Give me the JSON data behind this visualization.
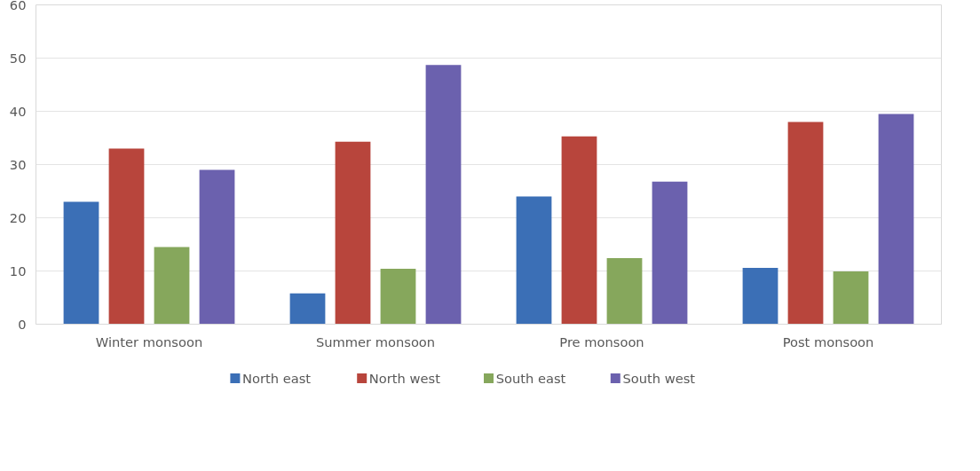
{
  "chart_data": {
    "type": "bar",
    "categories": [
      "Winter monsoon",
      "Summer monsoon",
      "Pre monsoon",
      "Post monsoon"
    ],
    "series": [
      {
        "name": "North east",
        "color": "#3b6fb6",
        "values": [
          23,
          5.8,
          24,
          10.6
        ]
      },
      {
        "name": "North west",
        "color": "#b8453c",
        "values": [
          33,
          34.3,
          35.3,
          38
        ]
      },
      {
        "name": "South east",
        "color": "#86a75c",
        "values": [
          14.5,
          10.4,
          12.4,
          9.9
        ]
      },
      {
        "name": "South west",
        "color": "#6b61ae",
        "values": [
          29,
          48.7,
          26.8,
          39.5
        ]
      }
    ],
    "ylim": [
      0,
      60
    ],
    "yticks": [
      0,
      10,
      20,
      30,
      40,
      50,
      60
    ],
    "grid": "y",
    "legend": "bottom"
  }
}
